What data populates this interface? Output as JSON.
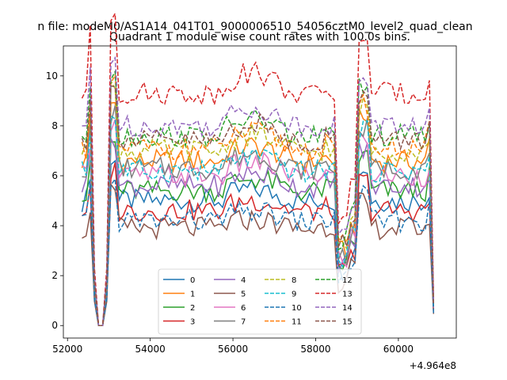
{
  "chart_data": {
    "type": "line",
    "suptitle": "n file: modeM0/AS1A14_041T01_9000006510_54056cztM0_level2_quad_clean",
    "title": "Quadrant 1 module wise count rates with 100.0s bins.",
    "xlabel": "",
    "ylabel": "",
    "x_offset_label": "+4.964e8",
    "xlim": [
      51900,
      61400
    ],
    "ylim": [
      -0.5,
      11.2
    ],
    "xticks": [
      52000,
      54000,
      56000,
      58000,
      60000
    ],
    "xtick_labels": [
      "52000",
      "54000",
      "56000",
      "58000",
      "60000"
    ],
    "yticks": [
      0,
      2,
      4,
      6,
      8,
      10
    ],
    "ytick_labels": [
      "0",
      "2",
      "4",
      "6",
      "8",
      "10"
    ],
    "x_start": 52350,
    "x_step": 100,
    "legend_position": "lower-center",
    "legend_columns": 4,
    "series": [
      {
        "name": "0",
        "color": "#1f77b4",
        "dash": "solid",
        "level": 5.0
      },
      {
        "name": "1",
        "color": "#ff7f0e",
        "dash": "solid",
        "level": 6.6
      },
      {
        "name": "2",
        "color": "#2ca02c",
        "dash": "solid",
        "level": 5.4
      },
      {
        "name": "3",
        "color": "#d62728",
        "dash": "solid",
        "level": 4.6
      },
      {
        "name": "4",
        "color": "#9467bd",
        "dash": "solid",
        "level": 5.6
      },
      {
        "name": "5",
        "color": "#8c564b",
        "dash": "solid",
        "level": 3.9
      },
      {
        "name": "6",
        "color": "#e377c2",
        "dash": "solid",
        "level": 6.0
      },
      {
        "name": "7",
        "color": "#7f7f7f",
        "dash": "solid",
        "level": 6.3
      },
      {
        "name": "8",
        "color": "#bcbd22",
        "dash": "dashed",
        "level": 7.0
      },
      {
        "name": "9",
        "color": "#17becf",
        "dash": "dashed",
        "level": 6.2
      },
      {
        "name": "10",
        "color": "#1f77b4",
        "dash": "dashed",
        "level": 4.2
      },
      {
        "name": "11",
        "color": "#ff7f0e",
        "dash": "dashed",
        "level": 7.1
      },
      {
        "name": "12",
        "color": "#2ca02c",
        "dash": "dashed",
        "level": 7.6
      },
      {
        "name": "13",
        "color": "#d62728",
        "dash": "dashed",
        "level": 9.3
      },
      {
        "name": "14",
        "color": "#9467bd",
        "dash": "dashed",
        "level": 8.0
      },
      {
        "name": "15",
        "color": "#8c564b",
        "dash": "dashed",
        "level": 7.4
      }
    ]
  }
}
